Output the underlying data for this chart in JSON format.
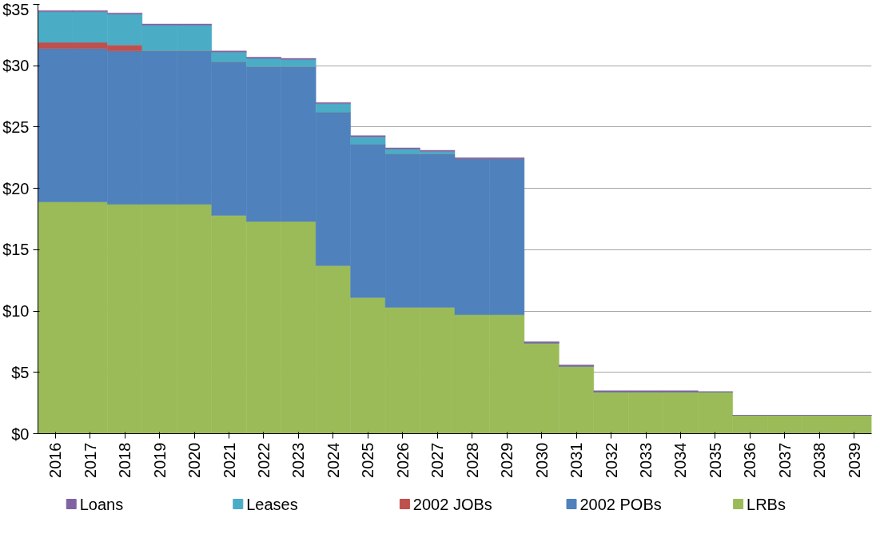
{
  "chart_data": {
    "type": "bar",
    "stacked": true,
    "categories": [
      "2016",
      "2017",
      "2018",
      "2019",
      "2020",
      "2021",
      "2022",
      "2023",
      "2024",
      "2025",
      "2026",
      "2027",
      "2028",
      "2029",
      "2030",
      "2031",
      "2032",
      "2033",
      "2034",
      "2035",
      "2036",
      "2037",
      "2038",
      "2039"
    ],
    "series": [
      {
        "name": "LRBs",
        "color": "#9bbb59",
        "values": [
          18.9,
          18.9,
          18.7,
          18.7,
          18.7,
          17.8,
          17.3,
          17.3,
          13.7,
          11.1,
          10.3,
          10.3,
          9.7,
          9.7,
          7.4,
          5.5,
          3.4,
          3.4,
          3.4,
          3.4,
          1.5,
          1.5,
          1.5,
          1.5
        ]
      },
      {
        "name": "2002 POBs",
        "color": "#4f81bd",
        "values": [
          12.5,
          12.5,
          12.5,
          12.5,
          12.5,
          12.5,
          12.6,
          12.6,
          12.5,
          12.5,
          12.5,
          12.5,
          12.7,
          12.7,
          0,
          0,
          0,
          0,
          0,
          0,
          0,
          0,
          0,
          0
        ]
      },
      {
        "name": "2002 JOBs",
        "color": "#c0504d",
        "values": [
          0.5,
          0.5,
          0.5,
          0,
          0,
          0,
          0,
          0,
          0,
          0,
          0,
          0,
          0,
          0,
          0,
          0,
          0,
          0,
          0,
          0,
          0,
          0,
          0,
          0
        ]
      },
      {
        "name": "Leases",
        "color": "#4bacc6",
        "values": [
          2.5,
          2.5,
          2.5,
          2.1,
          2.1,
          0.8,
          0.7,
          0.6,
          0.7,
          0.6,
          0.4,
          0.2,
          0,
          0,
          0,
          0,
          0,
          0,
          0,
          0,
          0,
          0,
          0,
          0
        ]
      },
      {
        "name": "Loans",
        "color": "#8064a2",
        "values": [
          0.1,
          0.1,
          0.1,
          0.1,
          0.1,
          0.1,
          0.1,
          0.1,
          0.1,
          0.1,
          0.1,
          0.1,
          0.1,
          0.1,
          0.1,
          0.1,
          0.1,
          0.1,
          0.1,
          0,
          0,
          0,
          0,
          0
        ]
      }
    ],
    "ylim": [
      0,
      35
    ],
    "yticks": [
      {
        "value": 0,
        "label": "$0"
      },
      {
        "value": 5,
        "label": "$5"
      },
      {
        "value": 10,
        "label": "$10"
      },
      {
        "value": 15,
        "label": "$15"
      },
      {
        "value": 20,
        "label": "$20"
      },
      {
        "value": 25,
        "label": "$25"
      },
      {
        "value": 30,
        "label": "$30"
      },
      {
        "value": 35,
        "label": "$35"
      }
    ],
    "grid": "y",
    "legend": "bottom"
  }
}
